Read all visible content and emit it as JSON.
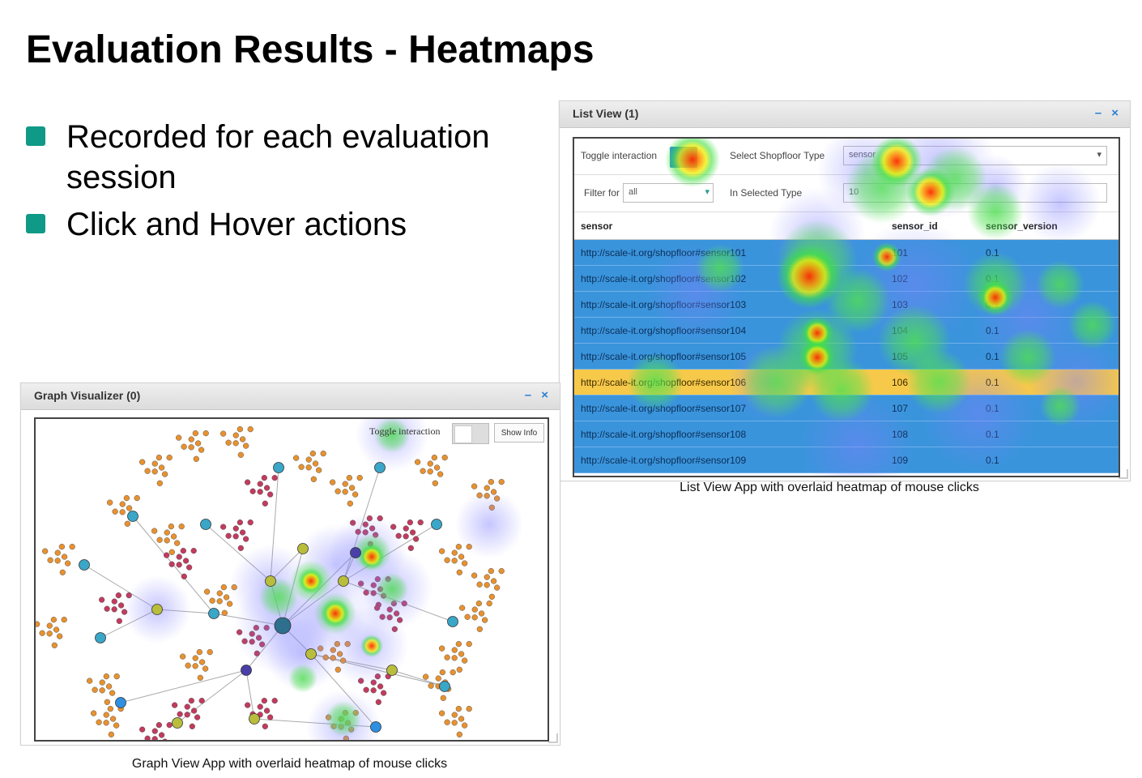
{
  "slide": {
    "title": "Evaluation Results - Heatmaps",
    "bullets": [
      {
        "text": "Recorded for each evaluation session"
      },
      {
        "text": "Click and Hover actions"
      }
    ],
    "accent_color": "#0e9a86"
  },
  "list_view": {
    "title": "List View (1)",
    "controls": "– ×",
    "toggle_label": "Toggle interaction",
    "shopfloor_label": "Select Shopfloor Type",
    "shopfloor_value": "sensor",
    "filter_label": "Filter for",
    "filter_value": "all",
    "selected_type_label": "In Selected Type",
    "selected_type_value": "10",
    "columns": [
      "sensor",
      "sensor_id",
      "sensor_version"
    ],
    "rows": [
      {
        "sensor": "http://scale-it.org/shopfloor#sensor101",
        "id": "101",
        "version": "0.1"
      },
      {
        "sensor": "http://scale-it.org/shopfloor#sensor102",
        "id": "102",
        "version": "0.1"
      },
      {
        "sensor": "http://scale-it.org/shopfloor#sensor103",
        "id": "103",
        "version": "0.1"
      },
      {
        "sensor": "http://scale-it.org/shopfloor#sensor104",
        "id": "104",
        "version": "0.1"
      },
      {
        "sensor": "http://scale-it.org/shopfloor#sensor105",
        "id": "105",
        "version": "0.1"
      },
      {
        "sensor": "http://scale-it.org/shopfloor#sensor106",
        "id": "106",
        "version": "0.1",
        "selected": true
      },
      {
        "sensor": "http://scale-it.org/shopfloor#sensor107",
        "id": "107",
        "version": "0.1"
      },
      {
        "sensor": "http://scale-it.org/shopfloor#sensor108",
        "id": "108",
        "version": "0.1"
      },
      {
        "sensor": "http://scale-it.org/shopfloor#sensor109",
        "id": "109",
        "version": "0.1"
      }
    ],
    "row_color": "#3a94dc",
    "selected_row_color": "#f7c94a",
    "caption": "List View App with overlaid heatmap of mouse clicks"
  },
  "graph_view": {
    "title": "Graph Visualizer (0)",
    "controls": "– ×",
    "toggle_label": "Toggle interaction",
    "button_label": "Show Info",
    "caption": "Graph View App with overlaid heatmap  of mouse clicks",
    "node_colors": [
      "#e8912e",
      "#c23b5e",
      "#3aa6c8",
      "#2f8fe0",
      "#b9bd3c",
      "#4a3fa8",
      "#2e6f8e"
    ]
  }
}
